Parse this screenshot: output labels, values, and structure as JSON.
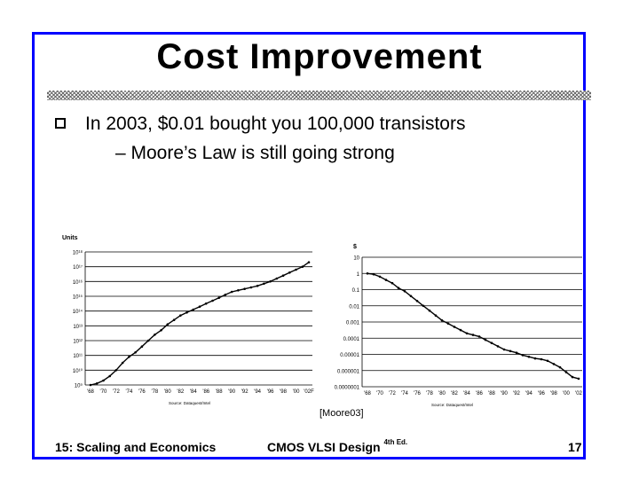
{
  "slide": {
    "title": "Cost Improvement",
    "bullet": "In 2003, $0.01 bought you 100,000 transistors",
    "sub_bullet": "– Moore’s Law is still going strong",
    "citation": "[Moore03]"
  },
  "footer": {
    "course": "15: Scaling and Economics",
    "book": "CMOS VLSI Design",
    "edition": "4th Ed.",
    "page": "17"
  },
  "chart_data": [
    {
      "type": "line",
      "title": "",
      "ylabel": "Units",
      "xlabel": "",
      "y_scale": "log",
      "ylim": [
        1000000000.0,
        1e+18
      ],
      "y_ticks": [
        "10¹⁸",
        "10¹⁷",
        "10¹⁶",
        "10¹⁵",
        "10¹⁴",
        "10¹³",
        "10¹²",
        "10¹¹",
        "10¹⁰",
        "10⁹"
      ],
      "x_ticks": [
        "'68",
        "'70",
        "'72",
        "'74",
        "'76",
        "'78",
        "'80",
        "'82",
        "'84",
        "'86",
        "'88",
        "'90",
        "'92",
        "'94",
        "'96",
        "'98",
        "'00",
        "'02F"
      ],
      "source": "Source: Dataquest/Intel",
      "series": [
        {
          "x": [
            1968,
            1969,
            1970,
            1971,
            1972,
            1973,
            1974,
            1975,
            1976,
            1977,
            1978,
            1979,
            1980,
            1981,
            1982,
            1983,
            1984,
            1985,
            1986,
            1987,
            1988,
            1989,
            1990,
            1991,
            1992,
            1993,
            1994,
            1995,
            1996,
            1997,
            1998,
            1999,
            2000,
            2001,
            2002
          ],
          "y_log10": [
            9.0,
            9.1,
            9.3,
            9.6,
            10.0,
            10.5,
            10.9,
            11.2,
            11.6,
            12.0,
            12.4,
            12.7,
            13.1,
            13.4,
            13.7,
            13.9,
            14.1,
            14.3,
            14.5,
            14.7,
            14.9,
            15.1,
            15.3,
            15.4,
            15.5,
            15.6,
            15.7,
            15.85,
            16.0,
            16.2,
            16.4,
            16.6,
            16.8,
            17.0,
            17.3
          ]
        }
      ]
    },
    {
      "type": "line",
      "title": "",
      "ylabel": "$",
      "xlabel": "",
      "y_scale": "log",
      "ylim": [
        1e-07,
        10
      ],
      "y_ticks": [
        "10",
        "1",
        "0.1",
        "0.01",
        "0.001",
        "0.0001",
        "0.00001",
        "0.000001",
        "0.0000001"
      ],
      "x_ticks": [
        "'68",
        "'70",
        "'72",
        "'74",
        "'76",
        "'78",
        "'80",
        "'82",
        "'84",
        "'86",
        "'88",
        "'90",
        "'92",
        "'94",
        "'96",
        "'98",
        "'00",
        "'02"
      ],
      "source": "Source: Dataquest/Intel",
      "series": [
        {
          "x": [
            1968,
            1969,
            1970,
            1971,
            1972,
            1973,
            1974,
            1975,
            1976,
            1977,
            1978,
            1979,
            1980,
            1981,
            1982,
            1983,
            1984,
            1985,
            1986,
            1987,
            1988,
            1989,
            1990,
            1991,
            1992,
            1993,
            1994,
            1995,
            1996,
            1997,
            1998,
            1999,
            2000,
            2001,
            2002
          ],
          "y_log10": [
            0.0,
            -0.05,
            -0.2,
            -0.4,
            -0.6,
            -0.9,
            -1.1,
            -1.4,
            -1.7,
            -2.0,
            -2.3,
            -2.6,
            -2.9,
            -3.1,
            -3.3,
            -3.5,
            -3.7,
            -3.8,
            -3.9,
            -4.1,
            -4.3,
            -4.5,
            -4.7,
            -4.8,
            -4.9,
            -5.05,
            -5.15,
            -5.25,
            -5.3,
            -5.4,
            -5.6,
            -5.8,
            -6.1,
            -6.4,
            -6.5
          ]
        }
      ]
    }
  ]
}
